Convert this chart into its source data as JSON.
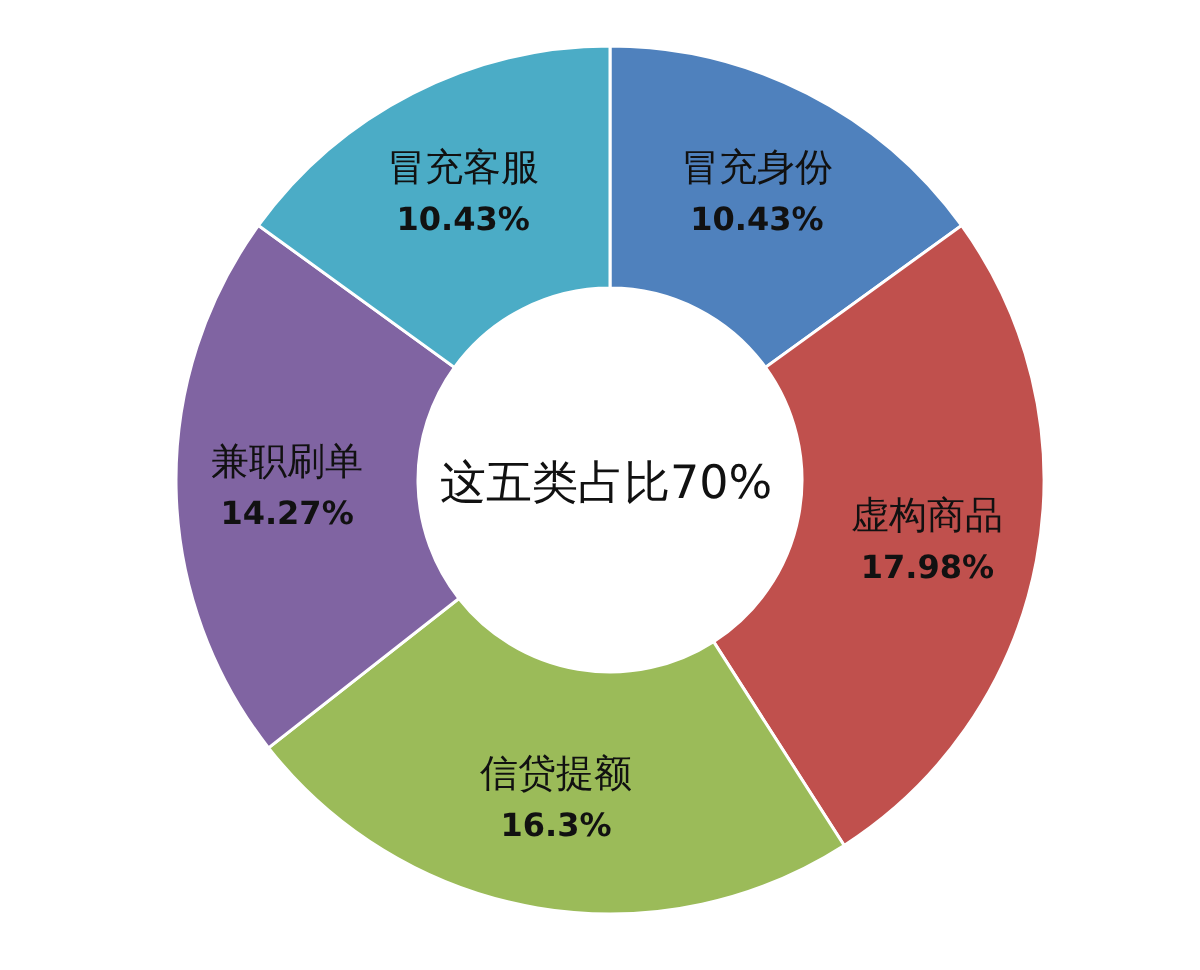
{
  "chart_data": {
    "type": "donut",
    "categories": [
      "冒充身份",
      "虚构商品",
      "信贷提额",
      "兼职刷单",
      "冒充客服"
    ],
    "values": [
      10.43,
      17.98,
      16.3,
      14.27,
      10.43
    ],
    "value_labels": [
      "10.43%",
      "17.98%",
      "16.3%",
      "14.27%",
      "10.43%"
    ],
    "colors": [
      "#4f81bd",
      "#c0504d",
      "#9bbb59",
      "#8064a2",
      "#4bacc6"
    ],
    "annotations": [
      "这五类占比70%"
    ]
  }
}
